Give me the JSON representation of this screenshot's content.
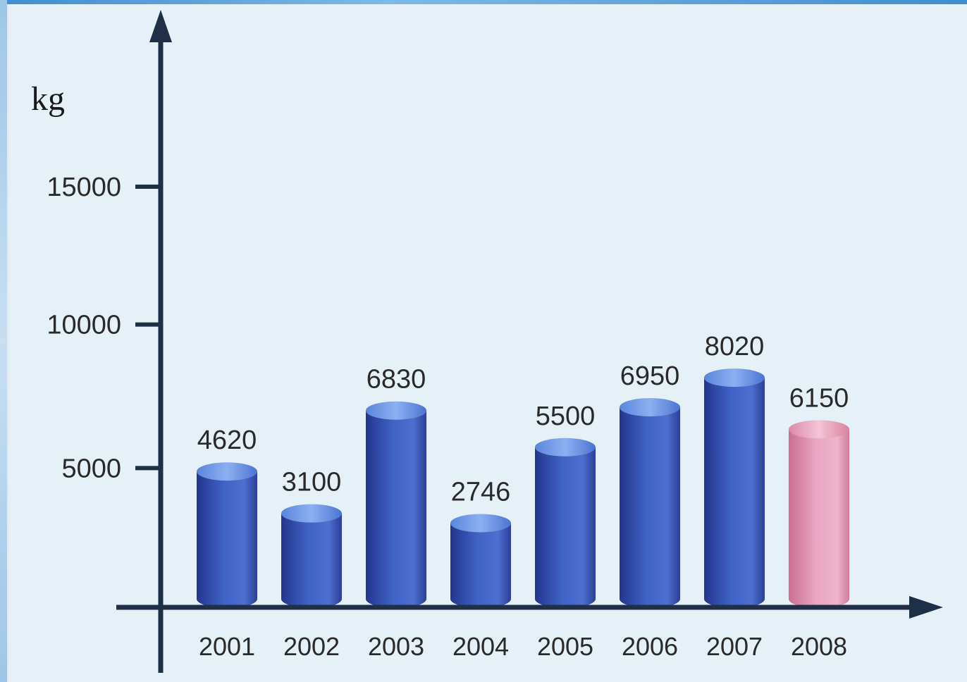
{
  "chart_data": {
    "type": "bar",
    "ylabel": "kg",
    "categories": [
      "2001",
      "2002",
      "2003",
      "2004",
      "2005",
      "2006",
      "2007",
      "2008"
    ],
    "values": [
      4620,
      3100,
      6830,
      2746,
      5500,
      6950,
      8020,
      6150
    ],
    "y_ticks": [
      {
        "value": 5000,
        "label": "5000"
      },
      {
        "value": 10000,
        "label": "10000"
      },
      {
        "value": 15000,
        "label": "15000"
      }
    ],
    "ylim": [
      0,
      17000
    ],
    "grid": false,
    "colors": {
      "bar": "#3f63c6",
      "bar_dark": "#24368f",
      "bar_light": "#7fa1ea",
      "highlight_bar": "#e59ab8",
      "highlight_bar_dark": "#cc6e92",
      "axis": "#1f2f45"
    },
    "highlighted_category": "2008"
  }
}
